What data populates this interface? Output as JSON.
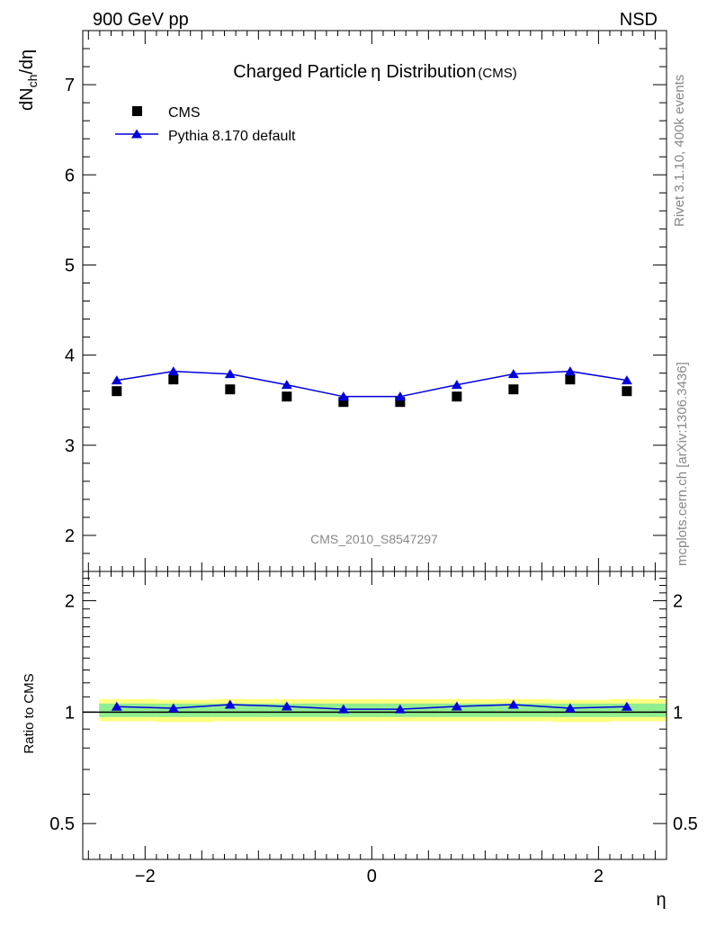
{
  "header": {
    "process": "900 GeV pp",
    "mode": "NSD"
  },
  "side_labels": {
    "rivet": "Rivet 3.1.10,  400k events",
    "mcplots": "mcplots.cern.ch [arXiv:1306.3436]"
  },
  "watermark": "CMS_2010_S8547297",
  "colors": {
    "data": "#000000",
    "mc": "#0000dd",
    "band_inner": "#90ee90",
    "band_outer": "#ffff80",
    "side_text": "#888888"
  },
  "chart_data": [
    {
      "panel": "main",
      "type": "scatter",
      "title_main": "Charged Particle",
      "title_symbol": "η",
      "title_rest": "Distribution",
      "title_suffix": "(CMS)",
      "ylabel": "dN",
      "ylabel_sub": "ch",
      "ylabel_tail": "/dη",
      "xlim": [
        -2.55,
        2.6
      ],
      "ylim": [
        1.6,
        7.6
      ],
      "yticks": [
        2,
        3,
        4,
        5,
        6,
        7
      ],
      "legend_position": "top-left",
      "series": [
        {
          "name": "CMS",
          "marker": "square",
          "x": [
            -2.25,
            -1.75,
            -1.25,
            -0.75,
            -0.25,
            0.25,
            0.75,
            1.25,
            1.75,
            2.25
          ],
          "y": [
            3.6,
            3.73,
            3.62,
            3.54,
            3.48,
            3.48,
            3.54,
            3.62,
            3.73,
            3.6
          ]
        },
        {
          "name": "Pythia 8.170 default",
          "marker": "triangle",
          "line": true,
          "x": [
            -2.25,
            -1.75,
            -1.25,
            -0.75,
            -0.25,
            0.25,
            0.75,
            1.25,
            1.75,
            2.25
          ],
          "y": [
            3.72,
            3.82,
            3.79,
            3.67,
            3.54,
            3.54,
            3.67,
            3.79,
            3.82,
            3.72
          ]
        }
      ]
    },
    {
      "panel": "ratio",
      "type": "line",
      "ylabel": "Ratio to CMS",
      "xlabel": "η",
      "xlim": [
        -2.55,
        2.6
      ],
      "ylim": [
        0.4,
        2.4
      ],
      "yscale": "log",
      "yticks": [
        0.5,
        1,
        2
      ],
      "ytick_labels": [
        "0.5",
        "1",
        "2"
      ],
      "xticks": [
        -2,
        0,
        2
      ],
      "xtick_labels": [
        "−2",
        "0",
        "2"
      ],
      "band_edges": [
        -2.5,
        -2.0,
        -1.5,
        -1.0,
        -0.5,
        0.0,
        0.5,
        1.0,
        1.5,
        2.0,
        2.5
      ],
      "band_inner_lo": [
        0.97,
        0.97,
        0.97,
        0.97,
        0.97,
        0.97,
        0.97,
        0.97,
        0.97,
        0.97
      ],
      "band_inner_hi": [
        1.055,
        1.055,
        1.055,
        1.055,
        1.055,
        1.055,
        1.055,
        1.055,
        1.055,
        1.055
      ],
      "band_outer_lo": [
        0.945,
        0.94,
        0.945,
        0.945,
        0.945,
        0.945,
        0.945,
        0.945,
        0.94,
        0.945
      ],
      "band_outer_hi": [
        1.085,
        1.08,
        1.085,
        1.085,
        1.085,
        1.085,
        1.085,
        1.085,
        1.08,
        1.085
      ],
      "series": [
        {
          "name": "Pythia 8.170 default",
          "x": [
            -2.25,
            -1.75,
            -1.25,
            -0.75,
            -0.25,
            0.25,
            0.75,
            1.25,
            1.75,
            2.25
          ],
          "y": [
            1.035,
            1.025,
            1.048,
            1.036,
            1.018,
            1.018,
            1.036,
            1.048,
            1.025,
            1.035
          ]
        }
      ]
    }
  ]
}
